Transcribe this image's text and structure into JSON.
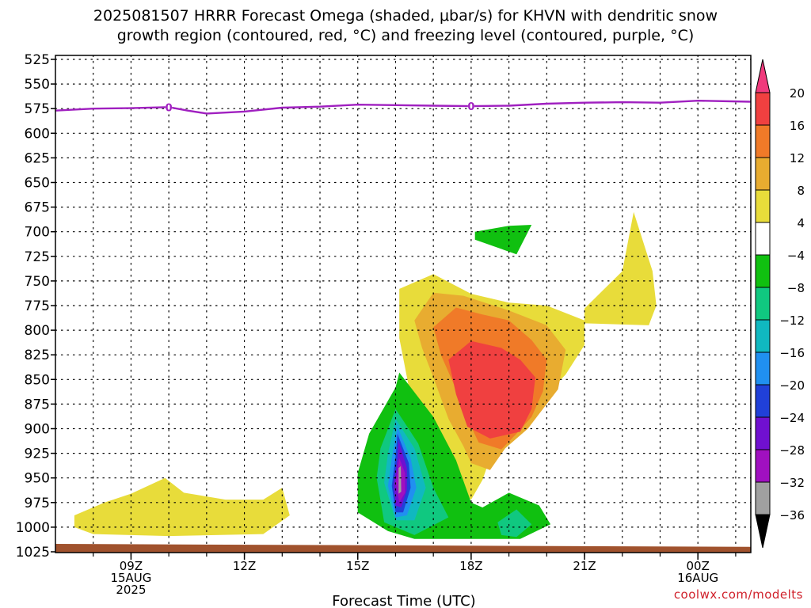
{
  "title_line1": "2025081507 HRRR Forecast Omega (shaded, μbar/s) for KHVN with dendritic snow",
  "title_line2": "growth region (contoured, red, °C) and freezing level (contoured, purple, °C)",
  "credit": "coolwx.com/modelts",
  "chart_data": {
    "type": "time-height cross section",
    "xlabel": "Forecast Time (UTC)",
    "ylabel": "",
    "y_axis": {
      "units": "mb",
      "range": [
        1025,
        520
      ],
      "inverted": true,
      "ticks": [
        525,
        550,
        575,
        600,
        625,
        650,
        675,
        700,
        725,
        750,
        775,
        800,
        825,
        850,
        875,
        900,
        925,
        950,
        975,
        1000,
        1025
      ]
    },
    "x_axis": {
      "range_hours": [
        7,
        25.4
      ],
      "ticks": [
        {
          "hour": 9,
          "lines": [
            "09Z",
            "15AUG",
            "2025"
          ]
        },
        {
          "hour": 12,
          "lines": [
            "12Z"
          ]
        },
        {
          "hour": 15,
          "lines": [
            "15Z"
          ]
        },
        {
          "hour": 18,
          "lines": [
            "18Z"
          ]
        },
        {
          "hour": 21,
          "lines": [
            "21Z"
          ]
        },
        {
          "hour": 24,
          "lines": [
            "00Z",
            "16AUG"
          ]
        }
      ]
    },
    "grid": true,
    "freezing_level": {
      "color": "#a020c0",
      "label": "0",
      "label_hours": [
        10,
        18
      ],
      "points": [
        [
          7,
          577
        ],
        [
          8,
          575
        ],
        [
          9,
          574.5
        ],
        [
          10,
          573.5
        ],
        [
          10.5,
          577
        ],
        [
          11,
          580
        ],
        [
          12,
          578
        ],
        [
          13,
          574
        ],
        [
          14,
          573
        ],
        [
          15,
          571
        ],
        [
          16,
          571.5
        ],
        [
          17,
          572
        ],
        [
          18,
          572.5
        ],
        [
          19,
          572
        ],
        [
          20,
          570
        ],
        [
          21,
          569
        ],
        [
          22,
          568.5
        ],
        [
          23,
          569
        ],
        [
          24,
          567
        ],
        [
          25.4,
          568
        ]
      ]
    },
    "surface": {
      "color": "#a0522d",
      "top_mb": [
        [
          7,
          1017
        ],
        [
          25.4,
          1020
        ]
      ]
    },
    "omega_colorbar": {
      "levels": [
        20,
        16,
        12,
        8,
        4,
        -4,
        -8,
        -12,
        -16,
        -20,
        -24,
        -28,
        -32,
        -36
      ],
      "colors": [
        "#f03a7c",
        "#f04040",
        "#f07a28",
        "#e8ac30",
        "#e8dc3a",
        "#ffffff",
        "#10c010",
        "#10c880",
        "#10b8c0",
        "#2090f0",
        "#2040d8",
        "#7010d0",
        "#a010c0",
        "#a0a0a0",
        "#000000"
      ]
    },
    "omega_regions": [
      {
        "level": 4,
        "color": "#e8dc3a",
        "points": [
          [
            7.5,
            988
          ],
          [
            8.3,
            975
          ],
          [
            9,
            966
          ],
          [
            9.9,
            950
          ],
          [
            10.4,
            965
          ],
          [
            11.5,
            972
          ],
          [
            12.5,
            972
          ],
          [
            13,
            960
          ],
          [
            13.2,
            988
          ],
          [
            12.5,
            1007
          ],
          [
            10,
            1009
          ],
          [
            8,
            1007
          ],
          [
            7.5,
            1000
          ]
        ]
      },
      {
        "level": 4,
        "color": "#e8dc3a",
        "points": [
          [
            16.1,
            758
          ],
          [
            17,
            743
          ],
          [
            18,
            763
          ],
          [
            19,
            772
          ],
          [
            20,
            775
          ],
          [
            21,
            790
          ],
          [
            21,
            815
          ],
          [
            20.5,
            845
          ],
          [
            20,
            865
          ],
          [
            19.5,
            885
          ],
          [
            19,
            905
          ],
          [
            18.5,
            930
          ],
          [
            18.3,
            952
          ],
          [
            18,
            972
          ],
          [
            17,
            942
          ],
          [
            16.5,
            887
          ],
          [
            16.1,
            808
          ]
        ]
      },
      {
        "level": 4,
        "color": "#e8dc3a",
        "points": [
          [
            21,
            778
          ],
          [
            22,
            740
          ],
          [
            22.3,
            680
          ],
          [
            22.8,
            740
          ],
          [
            22.9,
            775
          ],
          [
            22.7,
            795
          ],
          [
            21,
            793
          ]
        ]
      },
      {
        "level": 8,
        "color": "#e8ac30",
        "points": [
          [
            16.5,
            790
          ],
          [
            17,
            762
          ],
          [
            17.8,
            765
          ],
          [
            19,
            780
          ],
          [
            20,
            795
          ],
          [
            20.5,
            820
          ],
          [
            20.3,
            860
          ],
          [
            19.8,
            885
          ],
          [
            19.5,
            900
          ],
          [
            18.9,
            920
          ],
          [
            18.5,
            942
          ],
          [
            18,
            935
          ],
          [
            17.8,
            918
          ],
          [
            17.4,
            890
          ],
          [
            17,
            848
          ],
          [
            16.7,
            818
          ]
        ]
      },
      {
        "level": 12,
        "color": "#f07a28",
        "points": [
          [
            17,
            797
          ],
          [
            17.6,
            777
          ],
          [
            18.3,
            784
          ],
          [
            19,
            790
          ],
          [
            19.6,
            810
          ],
          [
            20,
            830
          ],
          [
            19.9,
            862
          ],
          [
            19.6,
            888
          ],
          [
            19.2,
            905
          ],
          [
            18.8,
            921
          ],
          [
            18.2,
            914
          ],
          [
            17.9,
            890
          ],
          [
            17.6,
            860
          ],
          [
            17.2,
            825
          ]
        ]
      },
      {
        "level": 16,
        "color": "#f04040",
        "points": [
          [
            17.4,
            830
          ],
          [
            18,
            811
          ],
          [
            18.8,
            818
          ],
          [
            19.3,
            830
          ],
          [
            19.7,
            848
          ],
          [
            19.6,
            880
          ],
          [
            19.3,
            903
          ],
          [
            18.5,
            910
          ],
          [
            17.9,
            898
          ],
          [
            17.6,
            865
          ]
        ]
      },
      {
        "level": -4,
        "color": "#10c010",
        "points": [
          [
            15,
            945
          ],
          [
            15.3,
            905
          ],
          [
            16,
            858
          ],
          [
            16.1,
            843
          ],
          [
            17,
            888
          ],
          [
            17.6,
            932
          ],
          [
            18,
            975
          ],
          [
            18.3,
            980
          ],
          [
            19,
            965
          ],
          [
            19.8,
            978
          ],
          [
            20.1,
            997
          ],
          [
            19.3,
            1012
          ],
          [
            16.5,
            1012
          ],
          [
            15.8,
            1004
          ],
          [
            15,
            985
          ]
        ]
      },
      {
        "level": -4,
        "color": "#10c010",
        "points": [
          [
            18.1,
            700
          ],
          [
            19,
            694
          ],
          [
            19.6,
            693
          ],
          [
            19.2,
            723
          ],
          [
            18.1,
            708
          ]
        ]
      },
      {
        "level": -8,
        "color": "#10c880",
        "points": [
          [
            15.5,
            950
          ],
          [
            15.6,
            920
          ],
          [
            16,
            880
          ],
          [
            16.6,
            915
          ],
          [
            17,
            960
          ],
          [
            17.4,
            990
          ],
          [
            16.5,
            1008
          ],
          [
            15.7,
            995
          ]
        ]
      },
      {
        "level": -8,
        "color": "#10c880",
        "points": [
          [
            18.7,
            995
          ],
          [
            19.2,
            982
          ],
          [
            19.6,
            997
          ],
          [
            19.2,
            1010
          ],
          [
            18.8,
            1008
          ]
        ]
      },
      {
        "level": -12,
        "color": "#10b8c0",
        "points": [
          [
            15.7,
            955
          ],
          [
            15.8,
            925
          ],
          [
            16,
            890
          ],
          [
            16.5,
            920
          ],
          [
            16.8,
            960
          ],
          [
            16.5,
            993
          ],
          [
            16,
            993
          ]
        ]
      },
      {
        "level": -16,
        "color": "#2090f0",
        "points": [
          [
            15.8,
            958
          ],
          [
            15.9,
            930
          ],
          [
            16.05,
            898
          ],
          [
            16.4,
            930
          ],
          [
            16.55,
            960
          ],
          [
            16.3,
            988
          ],
          [
            16,
            990
          ]
        ]
      },
      {
        "level": -20,
        "color": "#2040d8",
        "points": [
          [
            15.9,
            958
          ],
          [
            16,
            928
          ],
          [
            16.05,
            905
          ],
          [
            16.35,
            935
          ],
          [
            16.4,
            960
          ],
          [
            16.2,
            985
          ],
          [
            16,
            985
          ]
        ]
      },
      {
        "level": -24,
        "color": "#7010d0",
        "points": [
          [
            15.95,
            957
          ],
          [
            16.05,
            930
          ],
          [
            16.08,
            912
          ],
          [
            16.3,
            940
          ],
          [
            16.3,
            962
          ],
          [
            16.15,
            980
          ],
          [
            16,
            978
          ]
        ]
      },
      {
        "level": -28,
        "color": "#a010c0",
        "points": [
          [
            16,
            955
          ],
          [
            16.1,
            930
          ],
          [
            16.25,
            945
          ],
          [
            16.25,
            965
          ],
          [
            16.1,
            975
          ]
        ]
      },
      {
        "level": -32,
        "color": "#a0a0a0",
        "points": [
          [
            16.08,
            940
          ],
          [
            16.14,
            938
          ],
          [
            16.15,
            964
          ],
          [
            16.08,
            966
          ]
        ]
      }
    ]
  }
}
